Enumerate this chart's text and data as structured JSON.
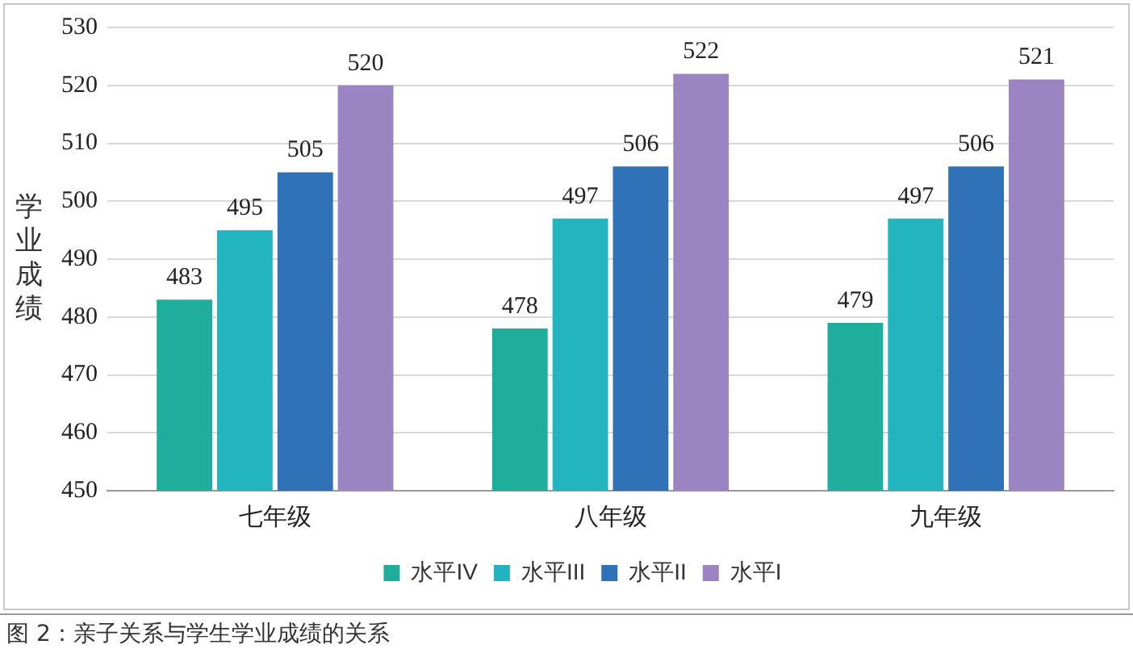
{
  "chart_data": {
    "type": "bar",
    "ylabel": "学业成绩",
    "categories": [
      "七年级",
      "八年级",
      "九年级"
    ],
    "series": [
      {
        "name": "水平IV",
        "color": "#1fae9c",
        "values": [
          483,
          478,
          479
        ]
      },
      {
        "name": "水平III",
        "color": "#22b5c0",
        "values": [
          495,
          497,
          497
        ]
      },
      {
        "name": "水平II",
        "color": "#2f72b8",
        "values": [
          505,
          506,
          506
        ]
      },
      {
        "name": "水平I",
        "color": "#9a84c2",
        "values": [
          520,
          522,
          521
        ]
      }
    ],
    "ylim": [
      450,
      530
    ],
    "yticks": [
      450,
      460,
      470,
      480,
      490,
      500,
      510,
      520,
      530
    ],
    "grid": "y",
    "legend": "bottom",
    "data_labels": true,
    "annotations": [
      "图 2：亲子关系与学生学业成绩的关系"
    ]
  }
}
